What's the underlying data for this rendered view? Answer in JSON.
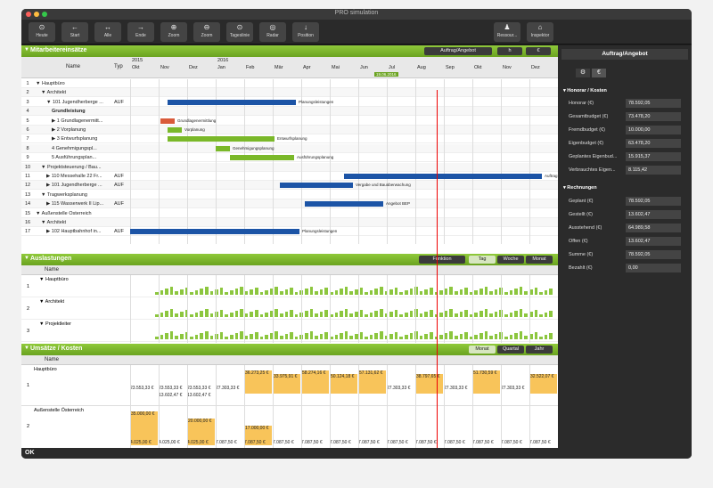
{
  "window": {
    "title": "PRO simulation"
  },
  "toolbar": {
    "left": [
      {
        "label": "Heute",
        "icon": "⊙",
        "name": "heute"
      },
      {
        "label": "Start",
        "icon": "←",
        "name": "start"
      },
      {
        "label": "Alle",
        "icon": "↔",
        "name": "alle"
      },
      {
        "label": "Ende",
        "icon": "→",
        "name": "ende"
      },
      {
        "label": "Zoom",
        "icon": "⊕",
        "name": "zoom-in"
      },
      {
        "label": "Zoom",
        "icon": "⊖",
        "name": "zoom-out"
      },
      {
        "label": "Tageslinie",
        "icon": "⊙",
        "name": "tageslinie"
      },
      {
        "label": "Radar",
        "icon": "◎",
        "name": "radar"
      },
      {
        "label": "Position",
        "icon": "↓",
        "name": "position"
      }
    ],
    "right": [
      {
        "label": "Ressour...",
        "icon": "♟",
        "name": "ressourcen"
      },
      {
        "label": "Inspektor",
        "icon": "⌂",
        "name": "inspektor"
      }
    ]
  },
  "gantt": {
    "title": "Mitarbeitereinsätze",
    "filter": "Auftrag/Angebot",
    "unit_h": "h",
    "unit_eur": "€",
    "col_name": "Name",
    "col_typ": "Typ",
    "years": [
      "2015",
      "2016"
    ],
    "months": [
      "Okt",
      "Nov",
      "Dez",
      "Jan",
      "Feb",
      "Mär",
      "Apr",
      "Mai",
      "Jun",
      "Jul",
      "Aug",
      "Sep",
      "Okt",
      "Nov",
      "Dez"
    ],
    "today": "19.06.2016",
    "rows": [
      {
        "n": "1",
        "name": "Hauptbüro",
        "typ": "",
        "indent": 1,
        "tri": "▼"
      },
      {
        "n": "2",
        "name": "Architekt",
        "typ": "",
        "indent": 2,
        "tri": "▼"
      },
      {
        "n": "3",
        "name": "101 Jugendherberge ...",
        "typ": "AUF",
        "indent": 3,
        "tri": "▼"
      },
      {
        "n": "4",
        "name": "Grundleistung",
        "typ": "",
        "indent": 4,
        "tri": "",
        "bold": true
      },
      {
        "n": "5",
        "name": "1 Grundlagenermitt...",
        "typ": "",
        "indent": 4,
        "tri": "▶"
      },
      {
        "n": "6",
        "name": "2 Vorplanung",
        "typ": "",
        "indent": 4,
        "tri": "▶"
      },
      {
        "n": "7",
        "name": "3 Entwurfsplanung",
        "typ": "",
        "indent": 4,
        "tri": "▶"
      },
      {
        "n": "8",
        "name": "4 Genehmigungspl...",
        "typ": "",
        "indent": 4,
        "tri": ""
      },
      {
        "n": "9",
        "name": "5 Ausführungsplan...",
        "typ": "",
        "indent": 4,
        "tri": ""
      },
      {
        "n": "10",
        "name": "Projektsteuerung / Bau...",
        "typ": "",
        "indent": 2,
        "tri": "▼"
      },
      {
        "n": "11",
        "name": "110 Messehalle 22 Fr...",
        "typ": "AUF",
        "indent": 3,
        "tri": "▶"
      },
      {
        "n": "12",
        "name": "101 Jugendherberge ...",
        "typ": "AUF",
        "indent": 3,
        "tri": "▶"
      },
      {
        "n": "13",
        "name": "Tragwerksplanung",
        "typ": "",
        "indent": 2,
        "tri": "▼"
      },
      {
        "n": "14",
        "name": "115 Wasserwerk II Lip...",
        "typ": "AUF",
        "indent": 3,
        "tri": "▶"
      },
      {
        "n": "15",
        "name": "Außenstelle Österreich",
        "typ": "",
        "indent": 1,
        "tri": "▼"
      },
      {
        "n": "16",
        "name": "Architekt",
        "typ": "",
        "indent": 2,
        "tri": "▼"
      },
      {
        "n": "17",
        "name": "102 Hauptbahnhof in...",
        "typ": "AUF",
        "indent": 3,
        "tri": "▶"
      }
    ],
    "bar_labels": [
      "Planungsleistungen",
      "Grundlagenermittlung",
      "Vorplanung",
      "Entwurfsplanung",
      "Genehmigungsplanung",
      "Ausführungsplanung",
      "Auftrag",
      "Vergabe und Bauüberwachung",
      "Angebot BEP",
      "Planungsleistungen"
    ]
  },
  "auslastung": {
    "title": "Auslastungen",
    "filter": "Funktion",
    "tabs": [
      "Tag",
      "Woche",
      "Monat"
    ],
    "col_name": "Name",
    "rows": [
      {
        "n": "1",
        "name": "Hauptbüro"
      },
      {
        "n": "2",
        "name": "Architekt"
      },
      {
        "n": "3",
        "name": "Projektleiter"
      }
    ]
  },
  "umsatz": {
    "title": "Umsätze / Kosten",
    "tabs": [
      "Monat",
      "Quartal",
      "Jahr"
    ],
    "col_name": "Name",
    "rows": [
      {
        "n": "1",
        "name": "Hauptbüro"
      },
      {
        "n": "2",
        "name": "Außenstelle Österreich"
      }
    ],
    "row1_bottom": [
      "23.553,33 €",
      "23.553,33 €",
      "23.553,33 €",
      "27.303,33 €",
      "27.303,33 €",
      "27.303,33 €",
      "27.303,33 €",
      "27.303,33 €",
      "27.303,33 €",
      "27.303,33 €",
      "27.303,33 €",
      "27.303,33 €",
      "27.303,33 €",
      "27.303,33 €",
      "27.303,33 €"
    ],
    "row1_second": [
      "13.602,47 €",
      "13.602,47 €"
    ],
    "row1_top": [
      "36.273,25 €",
      "33.975,91 €",
      "58.274,16 €",
      "50.124,18 €",
      "57.131,62 €",
      "38.797,65 €",
      "51.730,59 €",
      "32.522,07 €"
    ],
    "row2_top": [
      "35.000,00 €",
      "20.000,00 €",
      "17.000,00 €"
    ],
    "row2_bottom": [
      "4.025,00 €",
      "4.025,00 €",
      "4.025,00 €",
      "7.087,50 €",
      "7.087,50 €",
      "7.087,50 €",
      "7.087,50 €",
      "7.087,50 €",
      "7.087,50 €",
      "7.087,50 €",
      "7.087,50 €",
      "7.087,50 €",
      "7.087,50 €",
      "7.087,50 €",
      "7.087,50 €"
    ]
  },
  "inspector": {
    "title": "Auftrag/Angebot",
    "section1": "Honorar / Kosten",
    "fields1": [
      {
        "label": "Honorar (€)",
        "value": "78.592,05"
      },
      {
        "label": "Gesamtbudget (€)",
        "value": "73.478,20"
      },
      {
        "label": "Fremdbudget (€)",
        "value": "10.000,00"
      },
      {
        "label": "Eigenbudget (€)",
        "value": "63.478,20"
      },
      {
        "label": "Geplantes Eigenbud...",
        "value": "15.915,37"
      },
      {
        "label": "Verbrauchtes Eigen...",
        "value": "8.115,42"
      }
    ],
    "section2": "Rechnungen",
    "fields2": [
      {
        "label": "Geplant (€)",
        "value": "78.592,05"
      },
      {
        "label": "Gestellt (€)",
        "value": "13.602,47"
      },
      {
        "label": "Ausstehend (€)",
        "value": "64.989,58"
      },
      {
        "label": "Offen (€)",
        "value": "13.602,47"
      },
      {
        "label": "Summe (€)",
        "value": "78.592,05"
      },
      {
        "label": "Bezahlt (€)",
        "value": "0,00"
      }
    ]
  },
  "status": {
    "text": "OK"
  }
}
